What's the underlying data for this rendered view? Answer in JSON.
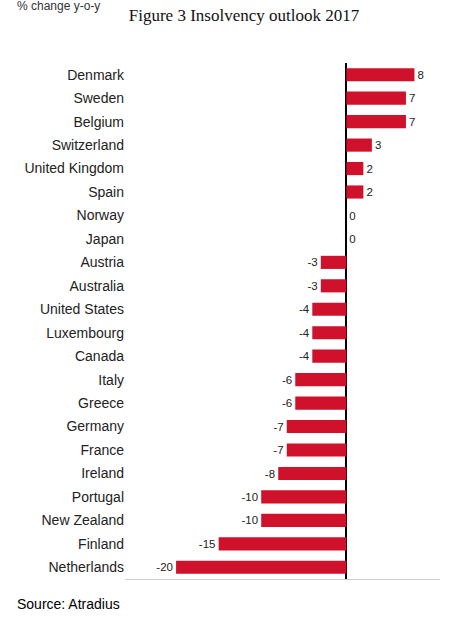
{
  "chart_data": {
    "type": "bar",
    "title": "Figure 3 Insolvency outlook 2017",
    "subtitle": "% change y-o-y",
    "annotations": [
      "Source: Atradius"
    ],
    "orientation": "horizontal",
    "categories": [
      "Denmark",
      "Sweden",
      "Belgium",
      "Switzerland",
      "United Kingdom",
      "Spain",
      "Norway",
      "Japan",
      "Austria",
      "Australia",
      "United States",
      "Luxembourg",
      "Canada",
      "Italy",
      "Greece",
      "Germany",
      "France",
      "Ireland",
      "Portugal",
      "New Zealand",
      "Finland",
      "Netherlands"
    ],
    "values": [
      8,
      7,
      7,
      3,
      2,
      2,
      0,
      0,
      -3,
      -3,
      -4,
      -4,
      -4,
      -6,
      -6,
      -7,
      -7,
      -8,
      -10,
      -10,
      -15,
      -20
    ],
    "color": "#d0112b",
    "xlim": [
      -26,
      11
    ],
    "data_labels": true,
    "tick_labels": "y",
    "grid": false
  }
}
